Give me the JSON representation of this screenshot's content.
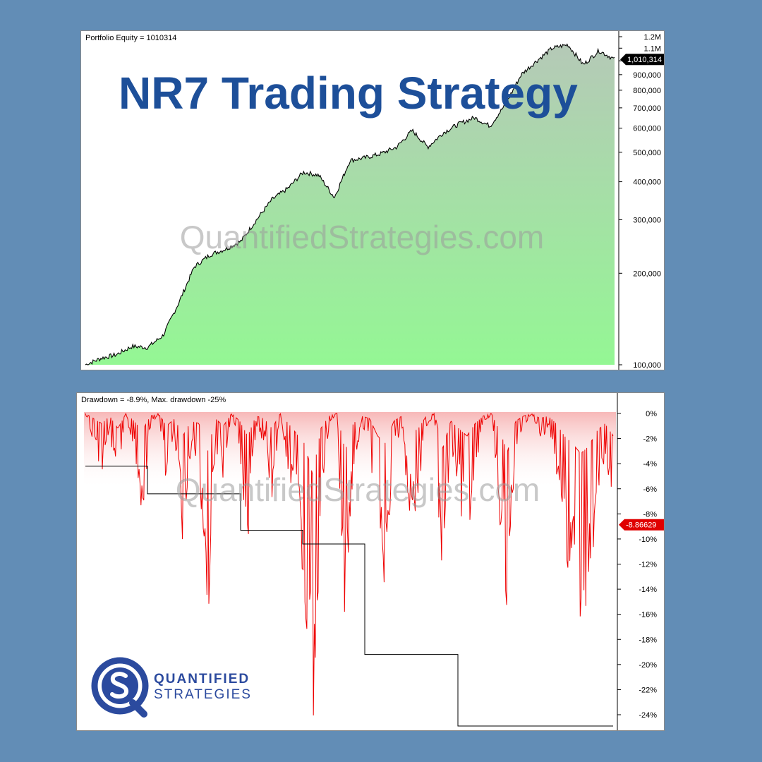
{
  "headline": "NR7 Trading Strategy",
  "watermark": "QuantifiedStrategies.com",
  "logo": {
    "line1": "QUANTIFIED",
    "line2": "STRATEGIES"
  },
  "colors": {
    "background": "#628db6",
    "headline": "#1d4f99",
    "equity_fill_top": "#b5c9b7",
    "equity_fill_bottom": "#94f794",
    "drawdown": "#ee0000",
    "logo": "#2b4a9e"
  },
  "chart_data": [
    {
      "type": "area",
      "label": "Portfolio Equity = 1010314",
      "scale": "log",
      "ylim": [
        100000,
        1200000
      ],
      "y_ticks": [
        100000,
        200000,
        300000,
        400000,
        500000,
        600000,
        700000,
        800000,
        900000,
        1000000,
        1100000,
        1200000
      ],
      "y_tick_labels": [
        "100,000",
        "200,000",
        "300,000",
        "400,000",
        "500,000",
        "600,000",
        "700,000",
        "800,000",
        "900,000",
        "",
        "1.1M",
        "1.2M"
      ],
      "last_value_label": "1,010,314",
      "last_value": 1010314,
      "series": [
        {
          "values": [
            100000,
            105000,
            108000,
            115000,
            114000,
            125000,
            160000,
            210000,
            230000,
            240000,
            255000,
            300000,
            350000,
            380000,
            430000,
            420000,
            355000,
            470000,
            480000,
            495000,
            520000,
            590000,
            520000,
            580000,
            620000,
            650000,
            610000,
            720000,
            900000,
            1000000,
            1100000,
            1130000,
            970000,
            1080000,
            1010314
          ]
        }
      ]
    },
    {
      "type": "area",
      "label": "Drawdown = -8.9%, Max. drawdown -25%",
      "ylim": [
        -25,
        1
      ],
      "y_ticks": [
        0,
        -2,
        -4,
        -6,
        -8,
        -10,
        -12,
        -14,
        -16,
        -18,
        -20,
        -22,
        -24
      ],
      "y_tick_labels": [
        "0%",
        "-2%",
        "-4%",
        "-6%",
        "-8%",
        "-10%",
        "-12%",
        "-14%",
        "-16%",
        "-18%",
        "-20%",
        "-22%",
        "-24%"
      ],
      "last_value_label": "-8.86629",
      "last_value": -8.86629,
      "series": [
        {
          "values": [
            0,
            -2,
            -4,
            -1,
            -6,
            0,
            -3,
            -7,
            -1,
            0,
            -5,
            -2,
            -9,
            -3,
            -4,
            -16,
            -2,
            -5,
            0,
            -3,
            -9,
            -1,
            -2,
            -6,
            0,
            -4,
            -8,
            -12,
            -24.5,
            -6,
            -1,
            0,
            -15,
            -4,
            -1,
            -2,
            -9,
            -12,
            -3,
            -1,
            -8,
            -6,
            -1,
            0,
            -14,
            -3,
            -6,
            -9,
            -4,
            -1,
            0,
            -7,
            -15,
            -3,
            -1,
            0,
            -2,
            -1,
            -4,
            -9,
            -12,
            -16,
            -13,
            -7,
            -4,
            -8.9
          ]
        },
        {
          "values": [
            -4.2,
            -4.2,
            -6.4,
            -6.4,
            -6.4,
            -9.3,
            -9.3,
            -10.4,
            -10.4,
            -19.2,
            -19.2,
            -19.2,
            -24.9,
            -24.9,
            -24.9,
            -24.9,
            -24.9,
            -24.9
          ]
        }
      ]
    }
  ]
}
